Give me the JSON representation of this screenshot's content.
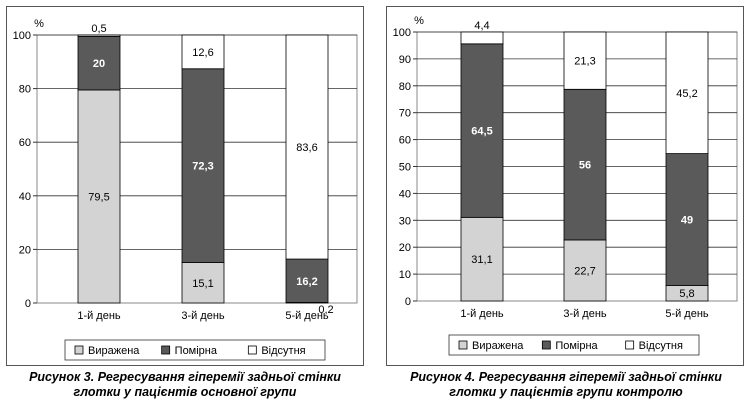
{
  "charts": [
    {
      "caption": {
        "prefix": "Рисунок 3.",
        "line1": " Регресування гіперемії задньої стінки",
        "line2": "глотки у пацієнтів основної групи"
      }
    },
    {
      "caption": {
        "prefix": "Рисунок 4.",
        "line1": " Регресування гіперемії задньої стінки",
        "line2": "глотки у пацієнтів групи контролю"
      }
    }
  ],
  "chart_data": [
    {
      "type": "bar",
      "stacked": true,
      "title": "",
      "ylabel": "%",
      "xlabel": "",
      "ylim": [
        0,
        100
      ],
      "yticks": [
        0,
        20,
        40,
        60,
        80,
        100
      ],
      "categories": [
        "1-й день",
        "3-й день",
        "5-й день"
      ],
      "series": [
        {
          "name": "Виражена",
          "values": [
            79.5,
            15.1,
            0.2
          ],
          "labels": [
            "79,5",
            "15,1",
            "0,2"
          ],
          "color": "#d3d3d3"
        },
        {
          "name": "Помірна",
          "values": [
            20,
            72.3,
            16.2
          ],
          "labels": [
            "20",
            "72,3",
            "16,2"
          ],
          "color": "#5a5a5a"
        },
        {
          "name": "Відсутня",
          "values": [
            0.5,
            12.6,
            83.6
          ],
          "labels": [
            "0,5",
            "12,6",
            "83,6"
          ],
          "color": "#ffffff"
        }
      ],
      "grid": true,
      "legend_position": "bottom"
    },
    {
      "type": "bar",
      "stacked": true,
      "title": "",
      "ylabel": "%",
      "xlabel": "",
      "ylim": [
        0,
        100
      ],
      "yticks": [
        0,
        10,
        20,
        30,
        40,
        50,
        60,
        70,
        80,
        90,
        100
      ],
      "categories": [
        "1-й день",
        "3-й день",
        "5-й день"
      ],
      "series": [
        {
          "name": "Виражена",
          "values": [
            31.1,
            22.7,
            5.8
          ],
          "labels": [
            "31,1",
            "22,7",
            "5,8"
          ],
          "color": "#d3d3d3"
        },
        {
          "name": "Помірна",
          "values": [
            64.5,
            56,
            49
          ],
          "labels": [
            "64,5",
            "56",
            "49"
          ],
          "color": "#5a5a5a"
        },
        {
          "name": "Відсутня",
          "values": [
            4.4,
            21.3,
            45.2
          ],
          "labels": [
            "4,4",
            "21,3",
            "45,2"
          ],
          "color": "#ffffff"
        }
      ],
      "grid": true,
      "legend_position": "bottom"
    }
  ]
}
